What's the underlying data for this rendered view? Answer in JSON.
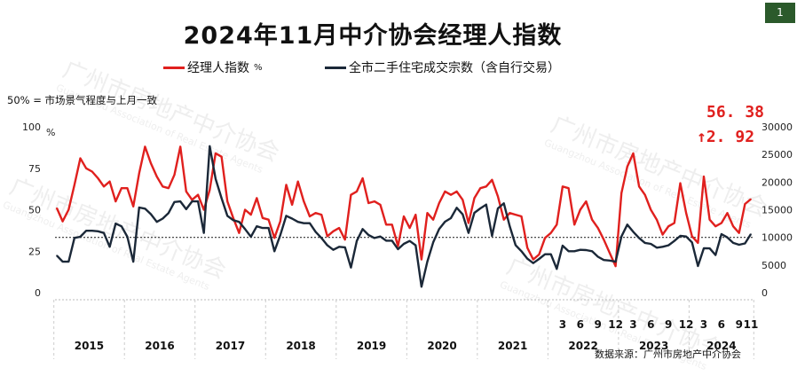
{
  "header": {
    "title": "2024年11月中介协会经理人指数",
    "page_number": "1"
  },
  "legend": {
    "index_label": "经理人指数",
    "index_unit": "%",
    "volume_label": "全市二手住宅成交宗数（含自行交易）"
  },
  "note": "50% = 市场景气程度与上月一致",
  "latest": {
    "value": "56. 38",
    "change": "2. 92",
    "change_icon": "arrow-up-icon"
  },
  "source": "数据来源：广州市房地产中介协会",
  "watermark": {
    "cn": "广州市房地产中介协会",
    "en": "Guangzhou Association of Real Estate Agents"
  },
  "colors": {
    "index": "#e0201e",
    "volume": "#1b2838",
    "page_box": "#2b5a2b"
  },
  "chart_data": {
    "type": "line",
    "x_start": "2015-01",
    "x_end": "2024-11",
    "left_axis": {
      "unit": "%",
      "ticks": [
        "100",
        "75",
        "50",
        "25",
        "0"
      ],
      "ylim": [
        0,
        100
      ]
    },
    "right_axis": {
      "ticks": [
        "30000",
        "25000",
        "20000",
        "15000",
        "10000",
        "5000",
        "0"
      ],
      "ylim": [
        0,
        30000
      ]
    },
    "reference_line": {
      "axis": "right",
      "value": 10000,
      "style": "dotted"
    },
    "x_year_labels": [
      "2015",
      "2016",
      "2017",
      "2018",
      "2019",
      "2020",
      "2021",
      "2022",
      "2023",
      "2024"
    ],
    "x_month_labels": [
      {
        "year": "2022",
        "months": [
          "3",
          "6",
          "9",
          "12"
        ]
      },
      {
        "year": "2023",
        "months": [
          "3",
          "6",
          "9",
          "12"
        ]
      },
      {
        "year": "2024",
        "months": [
          "3",
          "6",
          "9",
          "11"
        ]
      }
    ],
    "grid": false,
    "series": [
      {
        "name": "经理人指数",
        "axis": "left",
        "values": [
          51,
          43,
          50,
          65,
          81,
          75,
          73,
          69,
          64,
          67,
          55,
          63,
          63,
          52,
          72,
          88,
          78,
          70,
          64,
          63,
          71,
          88,
          61,
          56,
          59,
          50,
          62,
          84,
          82,
          55,
          45,
          36,
          50,
          47,
          57,
          45,
          44,
          33,
          43,
          65,
          53,
          67,
          55,
          46,
          48,
          47,
          34,
          37,
          39,
          32,
          59,
          61,
          69,
          54,
          55,
          53,
          41,
          41,
          28,
          46,
          39,
          47,
          20,
          48,
          44,
          54,
          61,
          59,
          61,
          56,
          42,
          57,
          63,
          64,
          68,
          58,
          44,
          48,
          47,
          46,
          27,
          20,
          23,
          33,
          36,
          41,
          64,
          63,
          41,
          50,
          55,
          44,
          39,
          32,
          24,
          16,
          60,
          76,
          84,
          64,
          59,
          50,
          44,
          35,
          40,
          42,
          66,
          48,
          34,
          30,
          70,
          44,
          40,
          42,
          48,
          40,
          36,
          53.46,
          56.38
        ]
      },
      {
        "name": "全市二手住宅成交宗数（含自行交易）",
        "axis": "right",
        "values": [
          6700,
          5600,
          5600,
          9900,
          10100,
          11200,
          11200,
          11100,
          10800,
          8300,
          12500,
          12000,
          10100,
          5600,
          15400,
          15200,
          14200,
          12800,
          13400,
          14400,
          16400,
          16500,
          15100,
          16500,
          16500,
          10800,
          26500,
          20600,
          17100,
          13900,
          13100,
          12800,
          11500,
          10100,
          12000,
          11700,
          11700,
          7500,
          10400,
          13900,
          13400,
          12800,
          12560,
          12560,
          11000,
          9890,
          8560,
          7750,
          8290,
          8200,
          4540,
          9360,
          11500,
          10430,
          9890,
          10150,
          9400,
          9400,
          7860,
          8820,
          9360,
          8560,
          1070,
          5610,
          9090,
          11500,
          12830,
          13470,
          15350,
          14160,
          10800,
          14440,
          15240,
          15930,
          10270,
          15240,
          16150,
          12030,
          8600,
          7500,
          6150,
          5350,
          6100,
          6950,
          6950,
          4300,
          8500,
          7500,
          7500,
          7750,
          7700,
          7500,
          6500,
          5900,
          5800,
          5600,
          10150,
          12300,
          11000,
          9890,
          9000,
          8820,
          8130,
          8300,
          8560,
          9360,
          10270,
          10150,
          9090,
          4810,
          8020,
          8000,
          6800,
          10590,
          10000,
          9000,
          8660,
          8900,
          10590
        ]
      }
    ]
  }
}
